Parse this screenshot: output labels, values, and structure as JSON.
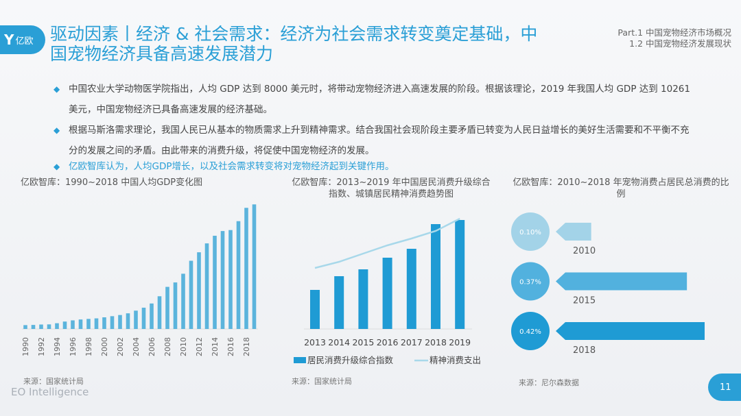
{
  "header": {
    "logo_text": "亿欧",
    "title": "驱动因素丨经济 & 社会需求：经济为社会需求转变奠定基础，中国宠物经济具备高速发展潜力",
    "part": "Part.1 中国宠物经济市场概况",
    "section": "1.2 中国宠物经济发展现状"
  },
  "bullets": [
    {
      "text": "中国农业大学动物医学院指出，人均 GDP 达到 8000 美元时，将带动宠物经济进入高速发展的阶段。根据该理论，2019 年我国人均 GDP 达到 10261 美元，中国宠物经济已具备高速发展的经济基础。",
      "highlight": false
    },
    {
      "text": "根据马斯洛需求理论，我国人民已从基本的物质需求上升到精神需求。结合我国社会现阶段主要矛盾已转变为人民日益增长的美好生活需要和不平衡不充分的发展之间的矛盾。由此带来的消费升级，将促使中国宠物经济的发展。",
      "highlight": false
    },
    {
      "text": "亿欧智库认为，人均GDP增长，以及社会需求转变将对宠物经济起到关键作用。",
      "highlight": true
    }
  ],
  "colors": {
    "accent": "#2a9fd6",
    "bar1": "#5bb4dc",
    "bar2": "#1f9bd4",
    "line": "#a8d8ea",
    "c2010": "#a3d3e8",
    "c2015": "#52b1de",
    "c2018": "#1f9bd4"
  },
  "chart_data": [
    {
      "type": "bar",
      "title": "亿欧智库：1990~2018 中国人均GDP变化图",
      "source": "来源：国家统计局",
      "categories": [
        "1990",
        "1991",
        "1992",
        "1993",
        "1994",
        "1995",
        "1996",
        "1997",
        "1998",
        "1999",
        "2000",
        "2001",
        "2002",
        "2003",
        "2004",
        "2005",
        "2006",
        "2007",
        "2008",
        "2009",
        "2010",
        "2011",
        "2012",
        "2013",
        "2014",
        "2015",
        "2016",
        "2017",
        "2018",
        "2019"
      ],
      "tick_labels": [
        "1990",
        "1992",
        "1994",
        "1996",
        "1998",
        "2000",
        "2002",
        "2004",
        "2006",
        "2008",
        "2010",
        "2012",
        "2014",
        "2016",
        "2018"
      ],
      "values": [
        317,
        333,
        366,
        377,
        473,
        610,
        709,
        782,
        829,
        873,
        959,
        1053,
        1149,
        1289,
        1509,
        1753,
        2099,
        2694,
        3468,
        3832,
        4550,
        5618,
        6317,
        7050,
        7678,
        8066,
        8147,
        8879,
        9977,
        10261
      ],
      "ylim": [
        0,
        10500
      ],
      "grid": false
    },
    {
      "type": "bar+line",
      "title": "亿欧智库：2013~2019 年中国居民消费升级综合指数、城镇居民精神消费趋势图",
      "source": "来源：国家统计局",
      "categories": [
        "2013",
        "2014",
        "2015",
        "2016",
        "2017",
        "2018",
        "2019"
      ],
      "series": [
        {
          "name": "居民消费升级综合指数",
          "type": "bar",
          "values": [
            57,
            77,
            87,
            104,
            117,
            153,
            159
          ]
        },
        {
          "name": "精神消费支出",
          "type": "line",
          "values": [
            89,
            98,
            110,
            122,
            132,
            143,
            161
          ]
        }
      ],
      "ylim": [
        0,
        170
      ],
      "grid": false,
      "legend": "bottom"
    },
    {
      "type": "bar",
      "title": "亿欧智库：2010~2018 年宠物消费占居民总消费的比例",
      "source": "来源：尼尔森数据",
      "categories": [
        "2010",
        "2015",
        "2018"
      ],
      "values": [
        0.1,
        0.37,
        0.42
      ],
      "labels": [
        "0.10%",
        "0.37%",
        "0.42%"
      ],
      "unit": "%"
    }
  ],
  "footer": {
    "brand": "EO Intelligence",
    "page": "11"
  }
}
